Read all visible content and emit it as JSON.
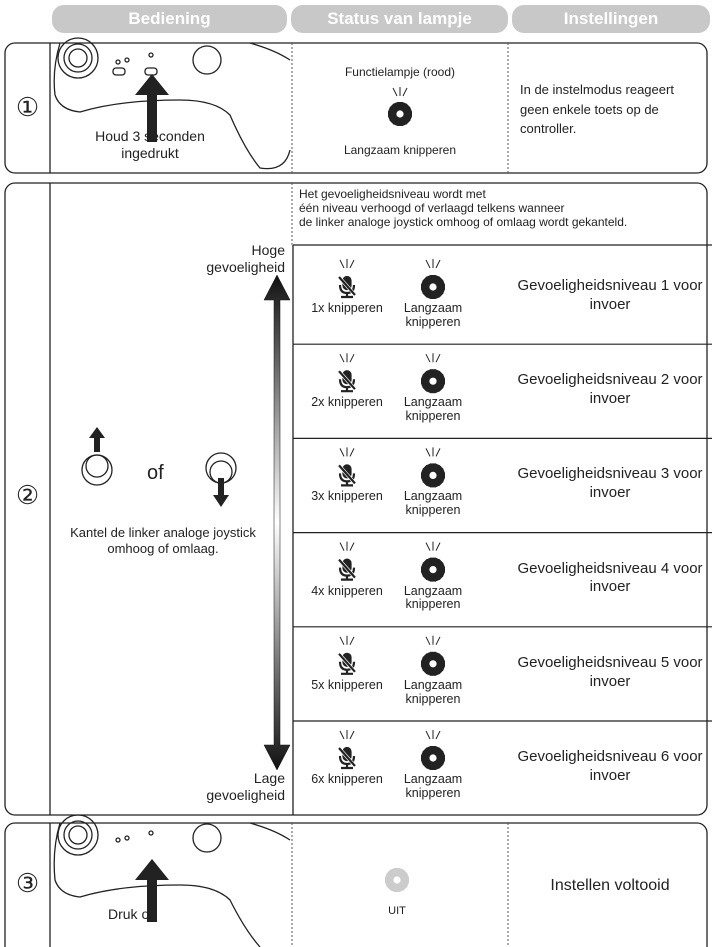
{
  "header": {
    "columns": [
      "Bediening",
      "Status van lampje",
      "Instellingen"
    ]
  },
  "step1": {
    "number": "①",
    "action": "Houd 3 seconden ingedrukt",
    "status_top": "Functielampje (rood)",
    "status_bottom": "Langzaam knipperen",
    "setting": "In de instelmodus reageert geen enkele toets op de controller."
  },
  "step2": {
    "number": "②",
    "intro": [
      "Het gevoeligheidsniveau wordt met",
      "één niveau verhoogd of verlaagd telkens wanneer",
      "de linker analoge joystick omhoog of omlaag wordt gekanteld."
    ],
    "high": "Hoge gevoeligheid",
    "low": "Lage gevoeligheid",
    "or": "of",
    "instruction": "Kantel de linker analoge joystick omhoog of omlaag.",
    "levels": [
      {
        "mic": "1x knipperen",
        "func": "Langzaam knipperen",
        "setting": "Gevoeligheidsniveau 1 voor invoer"
      },
      {
        "mic": "2x knipperen",
        "func": "Langzaam knipperen",
        "setting": "Gevoeligheidsniveau 2 voor invoer"
      },
      {
        "mic": "3x knipperen",
        "func": "Langzaam knipperen",
        "setting": "Gevoeligheidsniveau 3 voor invoer"
      },
      {
        "mic": "4x knipperen",
        "func": "Langzaam knipperen",
        "setting": "Gevoeligheidsniveau 4 voor invoer"
      },
      {
        "mic": "5x knipperen",
        "func": "Langzaam knipperen",
        "setting": "Gevoeligheidsniveau 5 voor invoer"
      },
      {
        "mic": "6x knipperen",
        "func": "Langzaam knipperen",
        "setting": "Gevoeligheidsniveau 6 voor invoer"
      }
    ]
  },
  "step3": {
    "number": "③",
    "action": "Druk op",
    "status": "UIT",
    "setting": "Instellen voltooid"
  }
}
